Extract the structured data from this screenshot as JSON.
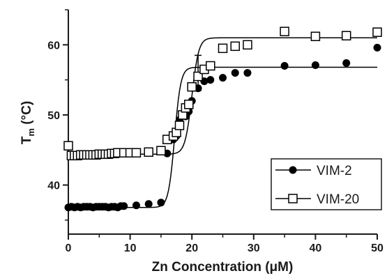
{
  "chart_data": {
    "type": "scatter",
    "title": "",
    "xlabel": "Zn Concentration (μM)",
    "ylabel_main": "T",
    "ylabel_sub": "m",
    "ylabel_rest": " (°C)",
    "xlim": [
      0,
      50
    ],
    "ylim": [
      33,
      65
    ],
    "x_ticks": [
      0,
      10,
      20,
      30,
      40,
      50
    ],
    "y_ticks": [
      40,
      50,
      60
    ],
    "x_tick_labels": [
      "0",
      "10",
      "20",
      "30",
      "40",
      "50"
    ],
    "y_tick_labels": [
      "40",
      "50",
      "60"
    ],
    "grid": false,
    "legend_position": "bottom-right",
    "series": [
      {
        "name": "VIM-2",
        "marker": "filled-circle",
        "color": "#000000",
        "x": [
          0,
          0.5,
          1,
          1.5,
          2,
          2.5,
          3,
          3.5,
          4,
          4.5,
          5,
          5.5,
          6,
          6.5,
          7,
          7.5,
          8,
          8.5,
          9,
          11,
          13,
          15,
          16,
          17,
          17.5,
          18,
          18.5,
          19,
          19.5,
          20,
          21,
          22,
          23,
          25,
          27,
          29,
          35,
          40,
          45,
          50
        ],
        "y": [
          36.8,
          36.9,
          36.8,
          36.9,
          36.8,
          36.9,
          36.9,
          36.9,
          36.8,
          36.9,
          36.9,
          36.9,
          36.9,
          36.8,
          36.9,
          36.9,
          36.8,
          37.0,
          37.0,
          37.1,
          37.3,
          37.5,
          44.5,
          46.5,
          47.0,
          49.3,
          50.0,
          49.8,
          50.5,
          52.0,
          53.8,
          54.8,
          55.0,
          55.3,
          56.0,
          56.0,
          57.0,
          57.1,
          57.4,
          59.6
        ]
      },
      {
        "name": "VIM-20",
        "marker": "open-square",
        "color": "#000000",
        "x": [
          0,
          0.5,
          1,
          1.5,
          2,
          2.5,
          3,
          3.5,
          4,
          4.5,
          5,
          5.5,
          6,
          6.5,
          7,
          7.5,
          8,
          9,
          10,
          11,
          13,
          15,
          16,
          17,
          17.5,
          18,
          18.5,
          19,
          19.5,
          20,
          21,
          22,
          23,
          25,
          27,
          29,
          35,
          40,
          45,
          50
        ],
        "y": [
          45.6,
          44.2,
          44.2,
          44.2,
          44.3,
          44.3,
          44.3,
          44.3,
          44.3,
          44.3,
          44.4,
          44.4,
          44.4,
          44.4,
          44.5,
          44.5,
          44.6,
          44.6,
          44.6,
          44.6,
          44.7,
          44.9,
          46.5,
          47.0,
          47.5,
          48.5,
          50.0,
          51.0,
          51.5,
          54.0,
          55.5,
          56.5,
          57.0,
          59.5,
          59.8,
          60.0,
          61.9,
          61.2,
          61.3,
          61.8
        ]
      }
    ],
    "fits": [
      {
        "series": "VIM-2",
        "bottom": 36.8,
        "top": 56.8,
        "midpoint": 17.2,
        "slope": 0.5
      },
      {
        "series": "VIM-20",
        "bottom": 44.4,
        "top": 61.0,
        "midpoint": 20.0,
        "slope": 0.55
      }
    ],
    "error_bars": [
      {
        "series": "VIM-20",
        "x": 21,
        "y": 55.5,
        "low": 53.5,
        "high": 58.5
      }
    ],
    "legend": [
      "VIM-2",
      "VIM-20"
    ]
  }
}
